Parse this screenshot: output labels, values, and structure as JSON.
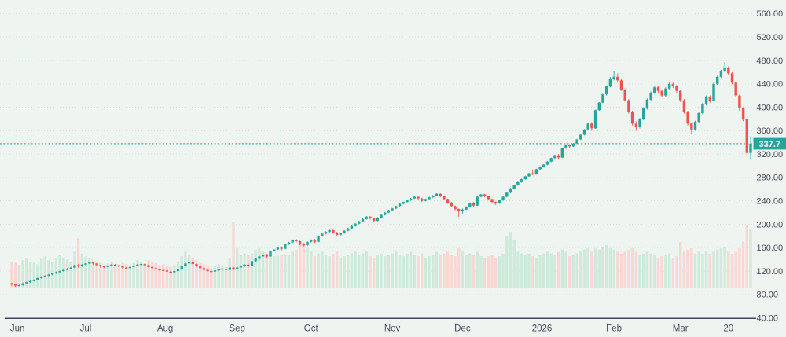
{
  "window": {
    "background": "#eef4f0"
  },
  "chart_data": {
    "type": "candlestick",
    "title": "",
    "legend_position": "none",
    "grid": "horizontal-dotted",
    "y_axis": {
      "side": "right",
      "min": 40,
      "max": 560,
      "step": 40,
      "tick_labels": [
        "40.00",
        "80.00",
        "120.00",
        "160.00",
        "200.00",
        "240.00",
        "280.00",
        "320.00",
        "360.00",
        "400.00",
        "440.00",
        "480.00",
        "520.00",
        "560.00"
      ]
    },
    "x_axis": {
      "tick_labels": [
        {
          "label": "Jun",
          "index": 1.5
        },
        {
          "label": "Jul",
          "index": 20
        },
        {
          "label": "Aug",
          "index": 41.5
        },
        {
          "label": "Sep",
          "index": 61
        },
        {
          "label": "Oct",
          "index": 81
        },
        {
          "label": "Nov",
          "index": 103
        },
        {
          "label": "Dec",
          "index": 122
        },
        {
          "label": "2026",
          "index": 143.5
        },
        {
          "label": "Feb",
          "index": 163
        },
        {
          "label": "Mar",
          "index": 181
        },
        {
          "label": "20",
          "index": 194
        }
      ]
    },
    "last_price": 337.7,
    "last_price_label": "337.7",
    "colors": {
      "bg": "#eef4f0",
      "up": "#26a69a",
      "down": "#ef5350",
      "volume_up": "#cfe9da",
      "volume_down": "#f8d7d4",
      "grid": "#e7dedb",
      "axis_text": "#474d59",
      "axis_line": "#40455b",
      "last_price_line": "#26a69a",
      "last_price_tag_bg": "#26a69a",
      "last_price_tag_text": "#ffffff"
    },
    "candles_format": [
      "open",
      "high",
      "low",
      "close",
      "volume_rel_0_100"
    ],
    "candles": [
      [
        99,
        100,
        95,
        97,
        40
      ],
      [
        97,
        98,
        93,
        95,
        38
      ],
      [
        95,
        97,
        94,
        96,
        35
      ],
      [
        96,
        100,
        95,
        99,
        42
      ],
      [
        99,
        102,
        98,
        101,
        45
      ],
      [
        101,
        104,
        100,
        103,
        40
      ],
      [
        103,
        106,
        102,
        105,
        38
      ],
      [
        105,
        109,
        104,
        108,
        36
      ],
      [
        108,
        111,
        107,
        110,
        44
      ],
      [
        110,
        113,
        109,
        112,
        48
      ],
      [
        112,
        115,
        111,
        114,
        42
      ],
      [
        114,
        117,
        113,
        116,
        40
      ],
      [
        116,
        119,
        115,
        118,
        45
      ],
      [
        118,
        121,
        117,
        120,
        50
      ],
      [
        120,
        123,
        119,
        122,
        46
      ],
      [
        122,
        125,
        121,
        124,
        43
      ],
      [
        124,
        127,
        123,
        126,
        40
      ],
      [
        126,
        131,
        125,
        130,
        55
      ],
      [
        130,
        132,
        126,
        128,
        75
      ],
      [
        128,
        132,
        127,
        131,
        52
      ],
      [
        131,
        134,
        130,
        133,
        48
      ],
      [
        133,
        136,
        132,
        135,
        45
      ],
      [
        135,
        136,
        131,
        133,
        42
      ],
      [
        133,
        134,
        129,
        130,
        40
      ],
      [
        130,
        131,
        126,
        128,
        38
      ],
      [
        128,
        129,
        125,
        127,
        35
      ],
      [
        127,
        130,
        126,
        129,
        37
      ],
      [
        129,
        132,
        128,
        131,
        40
      ],
      [
        131,
        132,
        128,
        130,
        36
      ],
      [
        130,
        131,
        126,
        128,
        34
      ],
      [
        128,
        129,
        124,
        126,
        38
      ],
      [
        126,
        127,
        123,
        125,
        36
      ],
      [
        125,
        128,
        124,
        127,
        35
      ],
      [
        127,
        130,
        126,
        129,
        38
      ],
      [
        129,
        132,
        128,
        131,
        42
      ],
      [
        131,
        133,
        130,
        132,
        40
      ],
      [
        132,
        133,
        128,
        130,
        37
      ],
      [
        130,
        131,
        126,
        127,
        42
      ],
      [
        127,
        128,
        123,
        125,
        40
      ],
      [
        125,
        126,
        122,
        123,
        38
      ],
      [
        123,
        124,
        120,
        122,
        35
      ],
      [
        122,
        123,
        119,
        121,
        36
      ],
      [
        121,
        122,
        118,
        119,
        34
      ],
      [
        119,
        120,
        116,
        118,
        32
      ],
      [
        118,
        121,
        117,
        120,
        35
      ],
      [
        120,
        124,
        119,
        123,
        40
      ],
      [
        123,
        129,
        122,
        128,
        48
      ],
      [
        128,
        134,
        127,
        133,
        55
      ],
      [
        133,
        137,
        132,
        136,
        50
      ],
      [
        136,
        137,
        131,
        132,
        45
      ],
      [
        132,
        133,
        127,
        128,
        42
      ],
      [
        128,
        129,
        124,
        125,
        38
      ],
      [
        125,
        126,
        121,
        122,
        36
      ],
      [
        122,
        123,
        119,
        120,
        34
      ],
      [
        120,
        121,
        118,
        119,
        30
      ],
      [
        119,
        122,
        118,
        121,
        33
      ],
      [
        121,
        124,
        120,
        123,
        36
      ],
      [
        123,
        125,
        122,
        124,
        34
      ],
      [
        124,
        125,
        121,
        122,
        32
      ],
      [
        122,
        127,
        121,
        126,
        45
      ],
      [
        126,
        127,
        121,
        123,
        100
      ],
      [
        123,
        127,
        122,
        126,
        60
      ],
      [
        126,
        129,
        125,
        128,
        50
      ],
      [
        128,
        132,
        127,
        131,
        52
      ],
      [
        131,
        133,
        126,
        128,
        50
      ],
      [
        128,
        138,
        127,
        137,
        52
      ],
      [
        137,
        142,
        136,
        141,
        58
      ],
      [
        141,
        146,
        140,
        145,
        60
      ],
      [
        145,
        149,
        144,
        148,
        55
      ],
      [
        148,
        150,
        143,
        145,
        48
      ],
      [
        145,
        155,
        144,
        154,
        52
      ],
      [
        154,
        158,
        153,
        157,
        48
      ],
      [
        157,
        161,
        156,
        160,
        50
      ],
      [
        160,
        162,
        155,
        158,
        50
      ],
      [
        158,
        167,
        157,
        166,
        50
      ],
      [
        166,
        170,
        165,
        169,
        50
      ],
      [
        169,
        174,
        168,
        173,
        55
      ],
      [
        173,
        175,
        169,
        171,
        58
      ],
      [
        171,
        172,
        164,
        166,
        68
      ],
      [
        166,
        168,
        162,
        164,
        65
      ],
      [
        164,
        171,
        163,
        170,
        62
      ],
      [
        170,
        174,
        169,
        173,
        55
      ],
      [
        173,
        175,
        168,
        170,
        48
      ],
      [
        170,
        181,
        169,
        180,
        52
      ],
      [
        180,
        185,
        179,
        184,
        55
      ],
      [
        184,
        188,
        183,
        187,
        50
      ],
      [
        187,
        191,
        185,
        190,
        48
      ],
      [
        190,
        191,
        184,
        186,
        52
      ],
      [
        186,
        187,
        180,
        182,
        55
      ],
      [
        182,
        186,
        181,
        185,
        45
      ],
      [
        185,
        190,
        184,
        189,
        48
      ],
      [
        189,
        194,
        188,
        193,
        50
      ],
      [
        193,
        198,
        192,
        197,
        52
      ],
      [
        197,
        202,
        196,
        201,
        55
      ],
      [
        201,
        206,
        200,
        205,
        50
      ],
      [
        205,
        210,
        204,
        209,
        52
      ],
      [
        209,
        214,
        208,
        213,
        55
      ],
      [
        213,
        214,
        208,
        210,
        48
      ],
      [
        210,
        211,
        204,
        206,
        45
      ],
      [
        206,
        212,
        205,
        211,
        50
      ],
      [
        211,
        217,
        210,
        216,
        52
      ],
      [
        216,
        221,
        215,
        220,
        48
      ],
      [
        220,
        225,
        219,
        224,
        50
      ],
      [
        224,
        228,
        223,
        227,
        52
      ],
      [
        227,
        232,
        226,
        231,
        55
      ],
      [
        231,
        236,
        230,
        235,
        50
      ],
      [
        235,
        239,
        234,
        238,
        48
      ],
      [
        238,
        242,
        237,
        241,
        52
      ],
      [
        241,
        245,
        240,
        244,
        55
      ],
      [
        244,
        248,
        243,
        247,
        50
      ],
      [
        247,
        248,
        242,
        244,
        48
      ],
      [
        244,
        245,
        238,
        240,
        52
      ],
      [
        240,
        244,
        239,
        243,
        45
      ],
      [
        243,
        247,
        242,
        246,
        48
      ],
      [
        246,
        250,
        245,
        249,
        50
      ],
      [
        249,
        253,
        248,
        252,
        55
      ],
      [
        252,
        253,
        246,
        248,
        50
      ],
      [
        248,
        249,
        241,
        243,
        52
      ],
      [
        243,
        244,
        235,
        237,
        55
      ],
      [
        237,
        238,
        229,
        231,
        50
      ],
      [
        231,
        232,
        224,
        226,
        48
      ],
      [
        226,
        227,
        213,
        222,
        60
      ],
      [
        222,
        227,
        218,
        225,
        55
      ],
      [
        225,
        231,
        224,
        230,
        50
      ],
      [
        230,
        237,
        229,
        236,
        52
      ],
      [
        236,
        238,
        229,
        232,
        50
      ],
      [
        232,
        248,
        231,
        247,
        55
      ],
      [
        247,
        252,
        246,
        251,
        48
      ],
      [
        251,
        252,
        246,
        248,
        45
      ],
      [
        248,
        249,
        241,
        243,
        48
      ],
      [
        243,
        244,
        236,
        238,
        50
      ],
      [
        238,
        239,
        233,
        236,
        45
      ],
      [
        236,
        242,
        235,
        241,
        48
      ],
      [
        241,
        248,
        240,
        247,
        52
      ],
      [
        247,
        255,
        246,
        254,
        78
      ],
      [
        254,
        262,
        253,
        261,
        85
      ],
      [
        261,
        268,
        260,
        267,
        72
      ],
      [
        267,
        273,
        266,
        272,
        55
      ],
      [
        272,
        278,
        271,
        277,
        52
      ],
      [
        277,
        283,
        276,
        282,
        50
      ],
      [
        282,
        288,
        281,
        287,
        52
      ],
      [
        287,
        292,
        284,
        286,
        48
      ],
      [
        286,
        295,
        285,
        294,
        45
      ],
      [
        294,
        299,
        293,
        298,
        50
      ],
      [
        298,
        303,
        297,
        302,
        52
      ],
      [
        302,
        308,
        301,
        307,
        55
      ],
      [
        307,
        314,
        306,
        313,
        52
      ],
      [
        313,
        319,
        312,
        318,
        50
      ],
      [
        318,
        320,
        311,
        314,
        55
      ],
      [
        314,
        331,
        313,
        330,
        58
      ],
      [
        330,
        337,
        329,
        336,
        55
      ],
      [
        336,
        337,
        330,
        333,
        48
      ],
      [
        333,
        339,
        332,
        338,
        50
      ],
      [
        338,
        346,
        337,
        345,
        52
      ],
      [
        345,
        354,
        344,
        353,
        55
      ],
      [
        353,
        363,
        352,
        362,
        58
      ],
      [
        362,
        373,
        361,
        372,
        60
      ],
      [
        372,
        375,
        360,
        364,
        55
      ],
      [
        364,
        396,
        363,
        395,
        60
      ],
      [
        395,
        409,
        394,
        408,
        58
      ],
      [
        408,
        423,
        407,
        422,
        62
      ],
      [
        422,
        437,
        420,
        436,
        65
      ],
      [
        436,
        452,
        434,
        448,
        60
      ],
      [
        448,
        462,
        446,
        452,
        58
      ],
      [
        452,
        458,
        442,
        446,
        55
      ],
      [
        446,
        448,
        428,
        430,
        52
      ],
      [
        430,
        432,
        410,
        412,
        55
      ],
      [
        412,
        414,
        389,
        392,
        58
      ],
      [
        392,
        394,
        369,
        372,
        60
      ],
      [
        372,
        376,
        360,
        366,
        55
      ],
      [
        366,
        382,
        364,
        380,
        50
      ],
      [
        380,
        400,
        378,
        398,
        52
      ],
      [
        398,
        415,
        396,
        413,
        55
      ],
      [
        413,
        427,
        411,
        425,
        52
      ],
      [
        425,
        436,
        423,
        434,
        50
      ],
      [
        434,
        436,
        425,
        428,
        45
      ],
      [
        428,
        430,
        417,
        420,
        48
      ],
      [
        420,
        434,
        418,
        432,
        50
      ],
      [
        432,
        442,
        430,
        440,
        52
      ],
      [
        440,
        442,
        433,
        436,
        45
      ],
      [
        436,
        438,
        425,
        428,
        48
      ],
      [
        428,
        430,
        409,
        412,
        70
      ],
      [
        412,
        414,
        389,
        392,
        55
      ],
      [
        392,
        394,
        369,
        372,
        58
      ],
      [
        372,
        374,
        355,
        362,
        60
      ],
      [
        362,
        377,
        360,
        375,
        52
      ],
      [
        375,
        392,
        373,
        390,
        55
      ],
      [
        390,
        407,
        388,
        405,
        52
      ],
      [
        405,
        420,
        403,
        418,
        55
      ],
      [
        418,
        420,
        408,
        411,
        52
      ],
      [
        411,
        442,
        410,
        440,
        55
      ],
      [
        440,
        454,
        438,
        452,
        58
      ],
      [
        452,
        464,
        450,
        462,
        60
      ],
      [
        462,
        477,
        460,
        468,
        62
      ],
      [
        468,
        470,
        455,
        458,
        55
      ],
      [
        458,
        460,
        439,
        442,
        52
      ],
      [
        442,
        444,
        417,
        420,
        55
      ],
      [
        420,
        422,
        394,
        398,
        60
      ],
      [
        398,
        400,
        376,
        380,
        70
      ],
      [
        380,
        382,
        315,
        322,
        95
      ],
      [
        322,
        349,
        311,
        337.7,
        88
      ]
    ]
  }
}
